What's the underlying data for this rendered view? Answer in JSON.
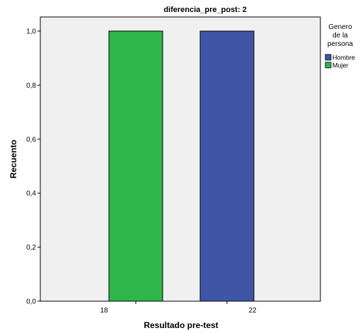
{
  "chart_data": {
    "type": "bar",
    "title": "diferencia_pre_post: 2",
    "xlabel": "Resultado pre-test",
    "ylabel": "Recuento",
    "categories": [
      "18",
      "22"
    ],
    "ylim": [
      0,
      1.0
    ],
    "yticks": [
      "0,0",
      "0,2",
      "0,4",
      "0,6",
      "0,8",
      "1,0"
    ],
    "grid": false,
    "legend_position": "right",
    "legend": {
      "title_lines": [
        "Genero",
        "de la",
        "persona"
      ],
      "items": [
        {
          "name": "Hombre",
          "color": "#3f56a7"
        },
        {
          "name": "Mujer",
          "color": "#2fb64a"
        }
      ]
    },
    "bars": [
      {
        "category": "18",
        "series": "Mujer",
        "value": 1.0
      },
      {
        "category": "22",
        "series": "Hombre",
        "value": 1.0
      }
    ]
  }
}
